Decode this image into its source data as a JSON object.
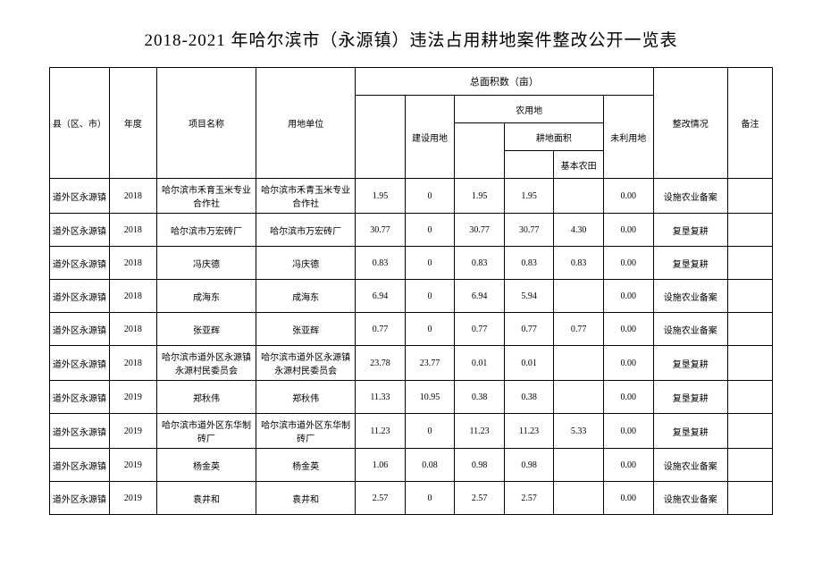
{
  "title": "2018-2021 年哈尔滨市（永源镇）违法占用耕地案件整改公开一览表",
  "headers": {
    "county": "县（区、市）",
    "year": "年度",
    "project": "项目名称",
    "unit": "用地单位",
    "total_area_group": "总面积数（亩）",
    "construction": "建设用地",
    "agri_group": "农用地",
    "cultivated": "耕地面积",
    "basic_farmland": "基本农田",
    "unused": "未利用地",
    "status": "整改情况",
    "remark": "备注"
  },
  "rows": [
    {
      "county": "道外区永源镇",
      "year": "2018",
      "project": "哈尔滨市禾育玉米专业合作社",
      "unit": "哈尔滨市禾青玉米专业合作社",
      "total": "1.95",
      "construction": "0",
      "agri": "1.95",
      "cultivated": "1.95",
      "basic": "",
      "unused": "0.00",
      "status": "设施农业备案",
      "remark": ""
    },
    {
      "county": "道外区永源镇",
      "year": "2018",
      "project": "哈尔滨市万宏砖厂",
      "unit": "哈尔滨市万宏砖厂",
      "total": "30.77",
      "construction": "0",
      "agri": "30.77",
      "cultivated": "30.77",
      "basic": "4.30",
      "unused": "0.00",
      "status": "复垦复耕",
      "remark": ""
    },
    {
      "county": "道外区永源镇",
      "year": "2018",
      "project": "冯庆德",
      "unit": "冯庆德",
      "total": "0.83",
      "construction": "0",
      "agri": "0.83",
      "cultivated": "0.83",
      "basic": "0.83",
      "unused": "0.00",
      "status": "复垦复耕",
      "remark": ""
    },
    {
      "county": "道外区永源镇",
      "year": "2018",
      "project": "成海东",
      "unit": "成海东",
      "total": "6.94",
      "construction": "0",
      "agri": "6.94",
      "cultivated": "5.94",
      "basic": "",
      "unused": "0.00",
      "status": "设施农业备案",
      "remark": ""
    },
    {
      "county": "道外区永源镇",
      "year": "2018",
      "project": "张亚辉",
      "unit": "张亚辉",
      "total": "0.77",
      "construction": "0",
      "agri": "0.77",
      "cultivated": "0.77",
      "basic": "0.77",
      "unused": "0.00",
      "status": "设施农业备案",
      "remark": ""
    },
    {
      "county": "道外区永源镇",
      "year": "2018",
      "project": "哈尔滨市道外区永源镇永源村民委员会",
      "unit": "哈尔滨市道外区永源镇永源村民委员会",
      "total": "23.78",
      "construction": "23.77",
      "agri": "0.01",
      "cultivated": "0.01",
      "basic": "",
      "unused": "0.00",
      "status": "复垦复耕",
      "remark": ""
    },
    {
      "county": "道外区永源镇",
      "year": "2019",
      "project": "郑秋伟",
      "unit": "郑秋伟",
      "total": "11.33",
      "construction": "10.95",
      "agri": "0.38",
      "cultivated": "0.38",
      "basic": "",
      "unused": "0.00",
      "status": "复垦复耕",
      "remark": ""
    },
    {
      "county": "道外区永源镇",
      "year": "2019",
      "project": "哈尔滨市道外区东华制砖厂",
      "unit": "哈尔滨市道外区东华制砖厂",
      "total": "11.23",
      "construction": "0",
      "agri": "11.23",
      "cultivated": "11.23",
      "basic": "5.33",
      "unused": "0.00",
      "status": "复垦复耕",
      "remark": ""
    },
    {
      "county": "道外区永源镇",
      "year": "2019",
      "project": "杨金英",
      "unit": "杨金英",
      "total": "1.06",
      "construction": "0.08",
      "agri": "0.98",
      "cultivated": "0.98",
      "basic": "",
      "unused": "0.00",
      "status": "设施农业备案",
      "remark": ""
    },
    {
      "county": "道外区永源镇",
      "year": "2019",
      "project": "袁井和",
      "unit": "袁井和",
      "total": "2.57",
      "construction": "0",
      "agri": "2.57",
      "cultivated": "2.57",
      "basic": "",
      "unused": "0.00",
      "status": "设施农业备案",
      "remark": ""
    }
  ]
}
